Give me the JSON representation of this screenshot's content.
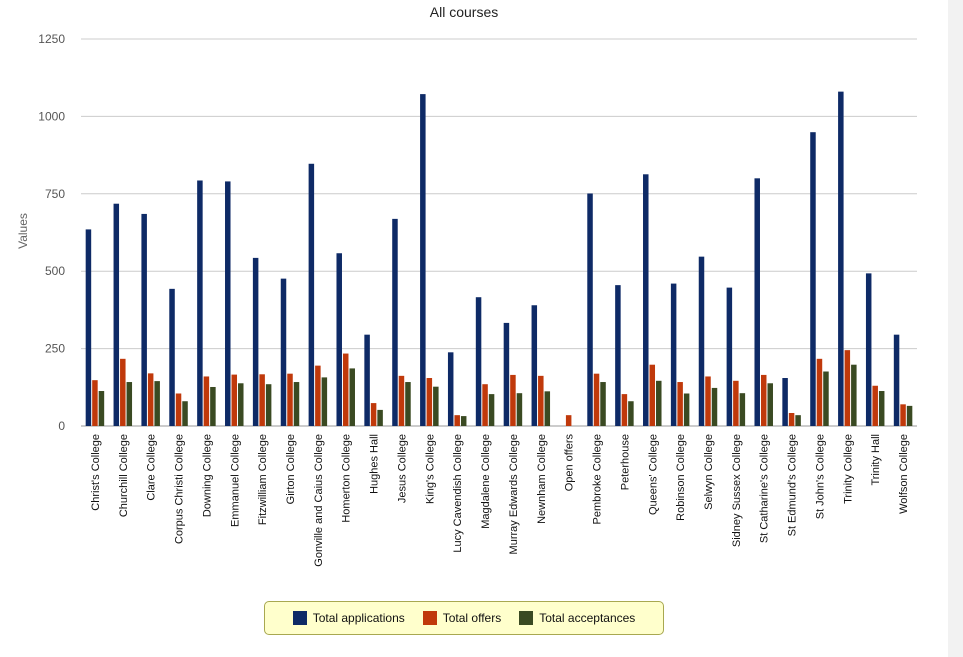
{
  "chart_data": {
    "type": "bar",
    "title": "All courses",
    "ylabel": "Values",
    "xlabel": "",
    "ylim": [
      0,
      1250
    ],
    "yticks": [
      0,
      250,
      500,
      750,
      1000,
      1250
    ],
    "grid": true,
    "legend_position": "bottom",
    "categories": [
      "Christ's College",
      "Churchill College",
      "Clare College",
      "Corpus Christi College",
      "Downing College",
      "Emmanuel College",
      "Fitzwilliam College",
      "Girton College",
      "Gonville and Caius College",
      "Homerton College",
      "Hughes Hall",
      "Jesus College",
      "King's College",
      "Lucy Cavendish College",
      "Magdalene College",
      "Murray Edwards College",
      "Newnham College",
      "Open offers",
      "Pembroke College",
      "Peterhouse",
      "Queens' College",
      "Robinson College",
      "Selwyn College",
      "Sidney Sussex College",
      "St Catharine's College",
      "St Edmund's College",
      "St John's College",
      "Trinity College",
      "Trinity Hall",
      "Wolfson College"
    ],
    "series": [
      {
        "name": "Total applications",
        "color": "#0e2a66",
        "values": [
          635,
          718,
          685,
          443,
          793,
          790,
          543,
          476,
          847,
          558,
          295,
          669,
          1072,
          238,
          416,
          333,
          390,
          0,
          751,
          455,
          813,
          460,
          547,
          447,
          800,
          155,
          949,
          1080,
          493,
          295
        ]
      },
      {
        "name": "Total offers",
        "color": "#c0390b",
        "values": [
          148,
          217,
          170,
          105,
          160,
          166,
          167,
          169,
          195,
          234,
          74,
          162,
          155,
          35,
          135,
          165,
          162,
          35,
          169,
          103,
          198,
          142,
          160,
          146,
          165,
          42,
          217,
          245,
          130,
          70
        ]
      },
      {
        "name": "Total acceptances",
        "color": "#3a4a22",
        "values": [
          113,
          142,
          145,
          80,
          126,
          138,
          135,
          142,
          157,
          186,
          52,
          142,
          127,
          32,
          103,
          106,
          112,
          0,
          142,
          80,
          146,
          105,
          123,
          106,
          138,
          35,
          176,
          198,
          113,
          65
        ]
      }
    ]
  }
}
